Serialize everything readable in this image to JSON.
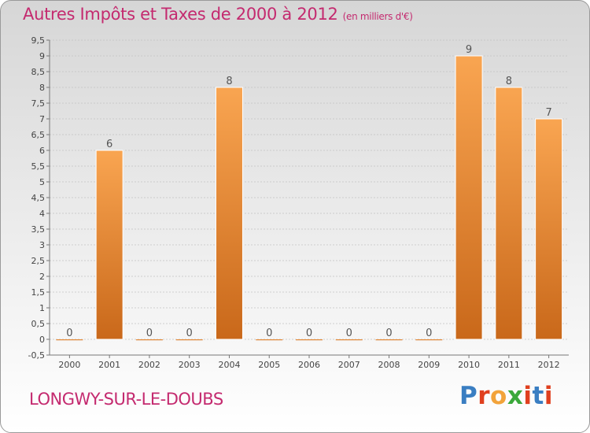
{
  "title": "Autres Impôts et Taxes de 2000 à 2012",
  "unit_note": "(en milliers d'€)",
  "town": "LONGWY-SUR-LE-DOUBS",
  "logo_text": "Proxiti",
  "colors": {
    "title": "#c42a6f",
    "bar_top": "#f9a551",
    "bar_bottom": "#c9681a",
    "logo": [
      "#3a7ec2",
      "#e0401f",
      "#f2a33a",
      "#3aa83a",
      "#e0401f",
      "#3a7ec2",
      "#e0401f"
    ]
  },
  "chart_data": {
    "type": "bar",
    "categories": [
      "2000",
      "2001",
      "2002",
      "2003",
      "2004",
      "2005",
      "2006",
      "2007",
      "2008",
      "2009",
      "2010",
      "2011",
      "2012"
    ],
    "values": [
      0,
      6,
      0,
      0,
      8,
      0,
      0,
      0,
      0,
      0,
      9,
      8,
      7
    ],
    "data_labels": [
      "0",
      "6",
      "0",
      "0",
      "8",
      "0",
      "0",
      "0",
      "0",
      "0",
      "9",
      "8",
      "7"
    ],
    "title": "Autres Impôts et Taxes de 2000 à 2012",
    "xlabel": "",
    "ylabel": "",
    "ylim": [
      -0.5,
      9.5
    ],
    "yticks": [
      "-0,5",
      "0",
      "0,5",
      "1",
      "1,5",
      "2",
      "2,5",
      "3",
      "3,5",
      "4",
      "4,5",
      "5",
      "5,5",
      "6",
      "6,5",
      "7",
      "7,5",
      "8",
      "8,5",
      "9",
      "9,5"
    ],
    "grid": true,
    "legend": "none"
  }
}
